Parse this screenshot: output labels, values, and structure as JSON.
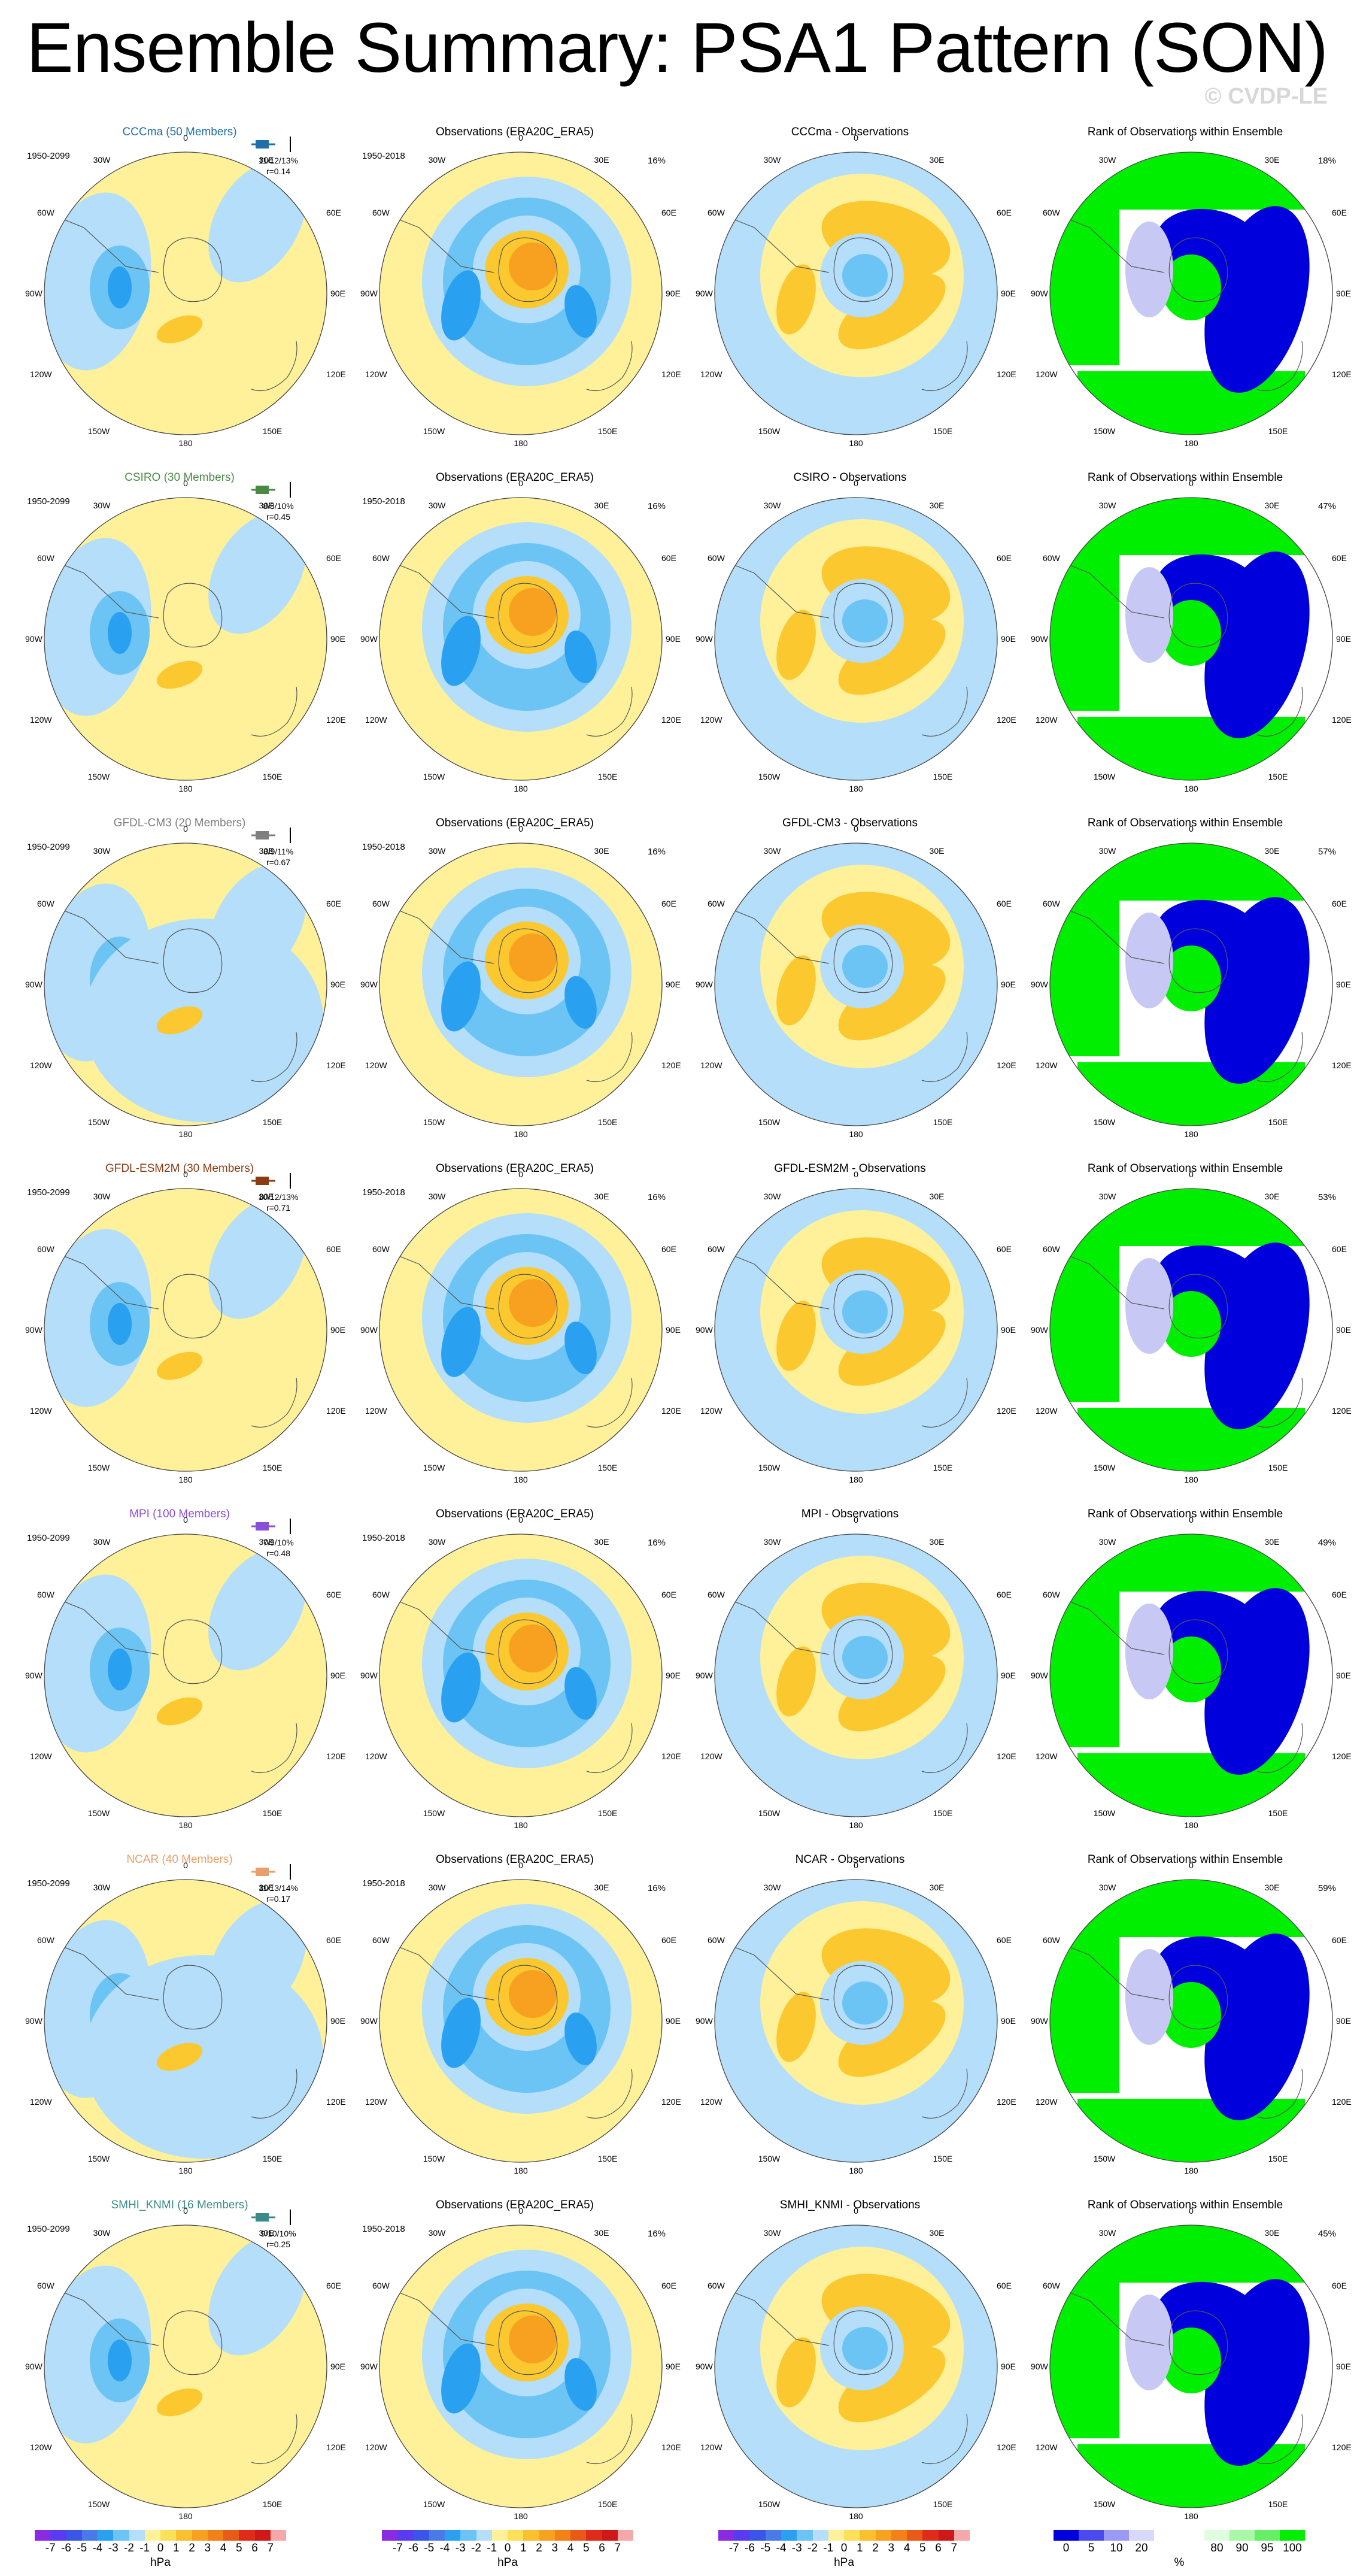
{
  "title": "Ensemble Summary: PSA1 Pattern (SON)",
  "watermark": "© CVDP-LE",
  "map_labels": {
    "top": "0",
    "b30w": "30W",
    "b30e": "30E",
    "b60w": "60W",
    "b60e": "60E",
    "b90w": "90W",
    "b90e": "90E",
    "b120w": "120W",
    "b120e": "120E",
    "b150w": "150W",
    "b150e": "150E",
    "bottom": "180"
  },
  "obs_title": "Observations (ERA20C_ERA5)",
  "obs_years": "1950-2018",
  "obs_pct": "16%",
  "model_years": "1950-2099",
  "rank_title": "Rank of Observations within Ensemble",
  "rows": [
    {
      "model": "CCCma (50 Members)",
      "color": "#1f6fa8",
      "stats": "11/12/13%",
      "r": "r=0.14",
      "diff": "CCCma - Observations",
      "rank_pct": "18%"
    },
    {
      "model": "CSIRO (30 Members)",
      "color": "#4a8a46",
      "stats": "8/8/10%",
      "r": "r=0.45",
      "diff": "CSIRO - Observations",
      "rank_pct": "47%"
    },
    {
      "model": "GFDL-CM3 (20 Members)",
      "color": "#7f7f7f",
      "stats": "8/9/11%",
      "r": "r=0.67",
      "diff": "GFDL-CM3 - Observations",
      "rank_pct": "57%"
    },
    {
      "model": "GFDL-ESM2M (30 Members)",
      "color": "#8a3b12",
      "stats": "10/12/13%",
      "r": "r=0.71",
      "diff": "GFDL-ESM2M - Observations",
      "rank_pct": "53%"
    },
    {
      "model": "MPI (100 Members)",
      "color": "#8a4fd8",
      "stats": "7/9/10%",
      "r": "r=0.48",
      "diff": "MPI - Observations",
      "rank_pct": "49%"
    },
    {
      "model": "NCAR (40 Members)",
      "color": "#e8a06a",
      "stats": "11/13/14%",
      "r": "r=0.17",
      "diff": "NCAR - Observations",
      "rank_pct": "59%"
    },
    {
      "model": "SMHI_KNMI (16 Members)",
      "color": "#3a8a8a",
      "stats": "9/10/10%",
      "r": "r=0.25",
      "diff": "SMHI_KNMI - Observations",
      "rank_pct": "45%"
    }
  ],
  "colorbar_hpa": {
    "colors": [
      "#8a2be2",
      "#5a3cf0",
      "#3a55e8",
      "#4a7ae8",
      "#2aa0f0",
      "#6cc4f4",
      "#b4defa",
      "#fff19a",
      "#fde05a",
      "#fbc030",
      "#f8a020",
      "#f48018",
      "#e85a18",
      "#e02a1a",
      "#d01818",
      "#f6a8a8"
    ],
    "ticks": [
      "-7",
      "-6",
      "-5",
      "-4",
      "-3",
      "-2",
      "-1",
      "0",
      "1",
      "2",
      "3",
      "4",
      "5",
      "6",
      "7"
    ],
    "unit": "hPa"
  },
  "colorbar_pct": {
    "colors": [
      "#0000dd",
      "#4a4aee",
      "#9a9af4",
      "#d8d8fa",
      "#ffffff",
      "#ffffff",
      "#ddffdd",
      "#a8f8a8",
      "#66ee66",
      "#00ee00"
    ],
    "ticks": [
      "0",
      "5",
      "10",
      "20",
      "80",
      "90",
      "95",
      "100"
    ],
    "unit": "%"
  },
  "palette": {
    "pos1": "#fff19a",
    "pos2": "#fbc830",
    "pos3": "#f8a020",
    "pos4": "#f48018",
    "neg1": "#b4defa",
    "neg2": "#6cc4f4",
    "neg3": "#2aa0f0",
    "neg4": "#1a78e0",
    "rank_blue": "#0000dd",
    "rank_lblue": "#c8c8f4",
    "rank_green": "#00ee00",
    "rank_lgreen": "#ccf8cc"
  }
}
